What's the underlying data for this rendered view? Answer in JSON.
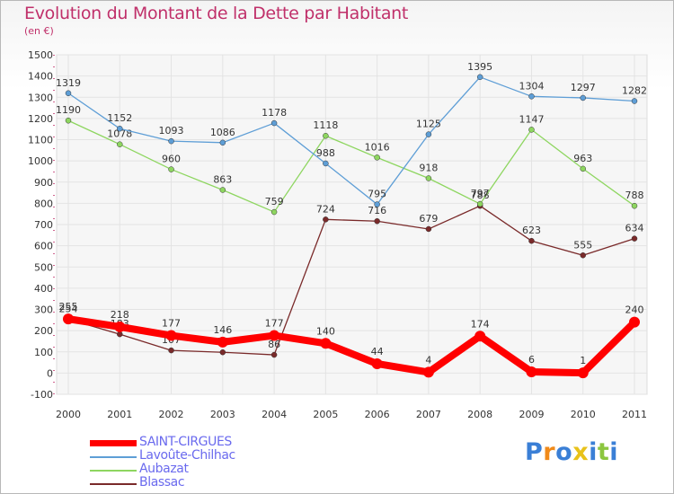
{
  "title": "Evolution du Montant de la Dette par Habitant",
  "unit_label": "(en €)",
  "chart_data": {
    "type": "line",
    "title": "Evolution du Montant de la Dette par Habitant",
    "subtitle": "(en €)",
    "xlabel": "",
    "ylabel": "",
    "x": [
      "2000",
      "2001",
      "2002",
      "2003",
      "2004",
      "2005",
      "2006",
      "2007",
      "2008",
      "2009",
      "2010",
      "2011"
    ],
    "ylim": [
      -100,
      1500
    ],
    "yticks": [
      -100,
      0,
      100,
      200,
      300,
      400,
      500,
      600,
      700,
      800,
      900,
      1000,
      1100,
      1200,
      1300,
      1400,
      1500
    ],
    "grid": true,
    "legend_position": "bottom-left",
    "series": [
      {
        "name": "SAINT-CIRGUES",
        "color": "#ff0000",
        "values": [
          255,
          218,
          177,
          146,
          177,
          140,
          44,
          4,
          174,
          6,
          1,
          240
        ]
      },
      {
        "name": "Lavoûte-Chilhac",
        "color": "#5e9ed6",
        "values": [
          1319,
          1152,
          1093,
          1086,
          1178,
          988,
          795,
          1125,
          1395,
          1304,
          1297,
          1282
        ]
      },
      {
        "name": "Aubazat",
        "color": "#8ed660",
        "values": [
          1190,
          1078,
          960,
          863,
          759,
          1118,
          1016,
          918,
          797,
          1147,
          963,
          788
        ]
      },
      {
        "name": "Blassac",
        "color": "#7a2a2a",
        "values": [
          254,
          183,
          107,
          98,
          86,
          724,
          716,
          679,
          788,
          623,
          555,
          634
        ]
      }
    ]
  },
  "logo": {
    "letters": [
      "P",
      "r",
      "o",
      "x",
      "i",
      "t",
      "i"
    ],
    "colors": [
      "#3a7fd6",
      "#f08a1a",
      "#3a7fd6",
      "#e8c21a",
      "#3a7fd6",
      "#8cc63f",
      "#3a7fd6"
    ]
  }
}
